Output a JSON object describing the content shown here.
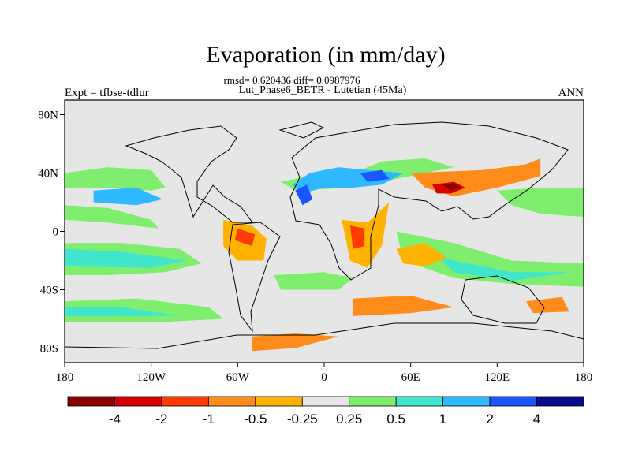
{
  "title": "Evaporation (in mm/day)",
  "stats": "rmsd= 0.620436 diff= 0.0987976",
  "subtitle": "Lut_Phase6_BETR - Lutetian (45Ma)",
  "left_label": "Expt = tfbse-tdlur",
  "right_label": "ANN",
  "chart_data": {
    "type": "heatmap",
    "projection": "cylindrical-equidistant",
    "title": "Evaporation (in mm/day)",
    "xlim": [
      -180,
      180
    ],
    "ylim": [
      -90,
      90
    ],
    "x_ticks": [
      {
        "value": -180,
        "label": "180"
      },
      {
        "value": -120,
        "label": "120W"
      },
      {
        "value": -60,
        "label": "60W"
      },
      {
        "value": 0,
        "label": "0"
      },
      {
        "value": 60,
        "label": "60E"
      },
      {
        "value": 120,
        "label": "120E"
      },
      {
        "value": 180,
        "label": "180"
      }
    ],
    "y_ticks": [
      {
        "value": 80,
        "label": "80N"
      },
      {
        "value": 40,
        "label": "40N"
      },
      {
        "value": 0,
        "label": "0"
      },
      {
        "value": -40,
        "label": "40S"
      },
      {
        "value": -80,
        "label": "80S"
      }
    ],
    "colorbar": {
      "levels": [
        "-4",
        "-2",
        "-1",
        "-0.5",
        "-0.25",
        "0.25",
        "0.5",
        "1",
        "2",
        "4"
      ],
      "colors": [
        "#8b0000",
        "#d70000",
        "#ff3a00",
        "#ff8c1a",
        "#ffb300",
        "#e6e6e6",
        "#7fee6e",
        "#3fe6cc",
        "#2db8ff",
        "#1a55ff",
        "#0a0a8c"
      ]
    },
    "regions": [
      {
        "class": 6,
        "points": [
          [
            -180,
            40
          ],
          [
            -150,
            44
          ],
          [
            -120,
            42
          ],
          [
            -110,
            30
          ],
          [
            -120,
            28
          ],
          [
            -150,
            30
          ],
          [
            -180,
            30
          ]
        ]
      },
      {
        "class": 8,
        "points": [
          [
            -160,
            28
          ],
          [
            -130,
            30
          ],
          [
            -112,
            22
          ],
          [
            -130,
            18
          ],
          [
            -160,
            20
          ]
        ]
      },
      {
        "class": 6,
        "points": [
          [
            -180,
            18
          ],
          [
            -150,
            16
          ],
          [
            -120,
            8
          ],
          [
            -115,
            2
          ],
          [
            -150,
            6
          ],
          [
            -180,
            8
          ]
        ]
      },
      {
        "class": 6,
        "points": [
          [
            -180,
            -8
          ],
          [
            -140,
            -8
          ],
          [
            -100,
            -12
          ],
          [
            -85,
            -22
          ],
          [
            -110,
            -28
          ],
          [
            -150,
            -30
          ],
          [
            -180,
            -30
          ]
        ]
      },
      {
        "class": 7,
        "points": [
          [
            -180,
            -12
          ],
          [
            -140,
            -14
          ],
          [
            -95,
            -20
          ],
          [
            -120,
            -25
          ],
          [
            -180,
            -24
          ]
        ]
      },
      {
        "class": 6,
        "points": [
          [
            -180,
            -48
          ],
          [
            -130,
            -46
          ],
          [
            -80,
            -52
          ],
          [
            -70,
            -60
          ],
          [
            -110,
            -62
          ],
          [
            -180,
            -62
          ]
        ]
      },
      {
        "class": 7,
        "points": [
          [
            -180,
            -52
          ],
          [
            -140,
            -52
          ],
          [
            -100,
            -58
          ],
          [
            -140,
            -58
          ],
          [
            -180,
            -58
          ]
        ]
      },
      {
        "class": 6,
        "points": [
          [
            -35,
            -30
          ],
          [
            0,
            -28
          ],
          [
            20,
            -32
          ],
          [
            10,
            -40
          ],
          [
            -30,
            -40
          ]
        ]
      },
      {
        "class": 6,
        "points": [
          [
            50,
            0
          ],
          [
            90,
            -8
          ],
          [
            130,
            -20
          ],
          [
            180,
            -22
          ],
          [
            180,
            -38
          ],
          [
            130,
            -36
          ],
          [
            90,
            -32
          ],
          [
            55,
            -20
          ]
        ]
      },
      {
        "class": 7,
        "points": [
          [
            80,
            -18
          ],
          [
            130,
            -28
          ],
          [
            170,
            -28
          ],
          [
            130,
            -34
          ],
          [
            90,
            -28
          ]
        ]
      },
      {
        "class": 6,
        "points": [
          [
            120,
            28
          ],
          [
            150,
            30
          ],
          [
            180,
            30
          ],
          [
            180,
            10
          ],
          [
            150,
            12
          ],
          [
            130,
            18
          ]
        ]
      },
      {
        "class": 6,
        "points": [
          [
            -30,
            34
          ],
          [
            -10,
            38
          ],
          [
            20,
            40
          ],
          [
            40,
            48
          ],
          [
            70,
            50
          ],
          [
            90,
            44
          ],
          [
            60,
            38
          ],
          [
            20,
            30
          ],
          [
            -20,
            28
          ]
        ]
      },
      {
        "class": 8,
        "points": [
          [
            -22,
            32
          ],
          [
            -10,
            40
          ],
          [
            10,
            44
          ],
          [
            30,
            42
          ],
          [
            55,
            40
          ],
          [
            40,
            32
          ],
          [
            20,
            30
          ],
          [
            0,
            30
          ],
          [
            -15,
            26
          ]
        ]
      },
      {
        "class": 9,
        "points": [
          [
            -20,
            28
          ],
          [
            -12,
            32
          ],
          [
            -8,
            22
          ],
          [
            -15,
            18
          ]
        ]
      },
      {
        "class": 9,
        "points": [
          [
            25,
            40
          ],
          [
            40,
            42
          ],
          [
            45,
            36
          ],
          [
            30,
            34
          ]
        ]
      },
      {
        "class": 4,
        "points": [
          [
            -70,
            8
          ],
          [
            -50,
            4
          ],
          [
            -40,
            -5
          ],
          [
            -42,
            -20
          ],
          [
            -60,
            -20
          ],
          [
            -70,
            -10
          ]
        ]
      },
      {
        "class": 2,
        "points": [
          [
            -60,
            2
          ],
          [
            -48,
            -2
          ],
          [
            -50,
            -10
          ],
          [
            -62,
            -6
          ]
        ]
      },
      {
        "class": 4,
        "points": [
          [
            12,
            8
          ],
          [
            30,
            6
          ],
          [
            45,
            20
          ],
          [
            40,
            -10
          ],
          [
            30,
            -25
          ],
          [
            18,
            -20
          ],
          [
            15,
            -5
          ]
        ]
      },
      {
        "class": 2,
        "points": [
          [
            18,
            4
          ],
          [
            28,
            2
          ],
          [
            28,
            -10
          ],
          [
            20,
            -12
          ]
        ]
      },
      {
        "class": 3,
        "points": [
          [
            60,
            40
          ],
          [
            110,
            42
          ],
          [
            140,
            46
          ],
          [
            150,
            50
          ],
          [
            150,
            38
          ],
          [
            120,
            30
          ],
          [
            90,
            24
          ],
          [
            70,
            30
          ]
        ]
      },
      {
        "class": 1,
        "points": [
          [
            75,
            32
          ],
          [
            90,
            34
          ],
          [
            98,
            30
          ],
          [
            88,
            26
          ],
          [
            78,
            26
          ]
        ]
      },
      {
        "class": 0,
        "points": [
          [
            82,
            32
          ],
          [
            90,
            33
          ],
          [
            95,
            30
          ],
          [
            88,
            28
          ]
        ]
      },
      {
        "class": 3,
        "points": [
          [
            20,
            -46
          ],
          [
            60,
            -44
          ],
          [
            90,
            -52
          ],
          [
            60,
            -56
          ],
          [
            20,
            -58
          ]
        ]
      },
      {
        "class": 3,
        "points": [
          [
            -50,
            -72
          ],
          [
            -20,
            -70
          ],
          [
            10,
            -72
          ],
          [
            -20,
            -80
          ],
          [
            -50,
            -82
          ]
        ]
      },
      {
        "class": 4,
        "points": [
          [
            50,
            -12
          ],
          [
            70,
            -8
          ],
          [
            85,
            -18
          ],
          [
            70,
            -24
          ],
          [
            55,
            -22
          ]
        ]
      },
      {
        "class": 3,
        "points": [
          [
            140,
            -48
          ],
          [
            165,
            -45
          ],
          [
            170,
            -55
          ],
          [
            145,
            -56
          ]
        ]
      }
    ]
  }
}
